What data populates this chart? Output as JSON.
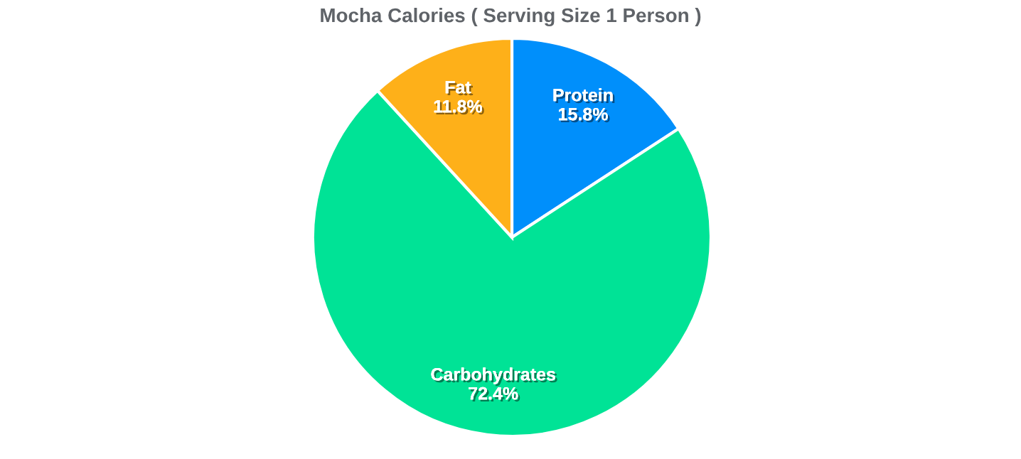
{
  "chart_data": {
    "type": "pie",
    "title": "Mocha Calories ( Serving Size 1 Person )",
    "categories": [
      "Protein",
      "Carbohydrates",
      "Fat"
    ],
    "values": [
      15.8,
      72.4,
      11.8
    ],
    "value_labels": [
      "15.8%",
      "72.4%",
      "11.8%"
    ],
    "colors": [
      "#008ffb",
      "#00e396",
      "#feb019"
    ],
    "legend": false
  }
}
